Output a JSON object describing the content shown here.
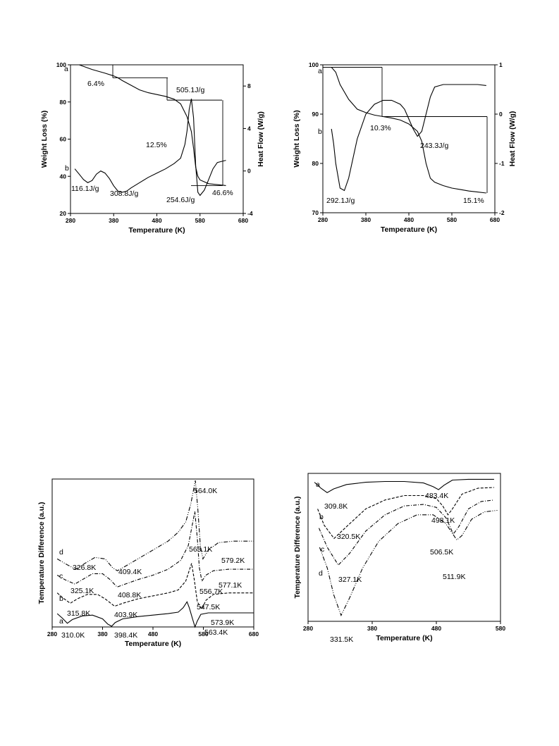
{
  "chart_data": [
    {
      "type": "line",
      "panel": "top-left",
      "xlabel": "Temperature (K)",
      "ylabel": "Weight Loss (%)",
      "y2label": "Heat Flow (W/g)",
      "xlim": [
        280,
        680
      ],
      "ylim": [
        20,
        100
      ],
      "y2lim": [
        -4,
        10
      ],
      "xticks": [
        "280",
        "380",
        "480",
        "580",
        "680"
      ],
      "yticks": [
        "20",
        "40",
        "60",
        "80",
        "100"
      ],
      "y2ticks": [
        "-4",
        "0",
        "4",
        "8"
      ],
      "series": [
        {
          "name": "a",
          "axis": "left",
          "x": [
            300,
            330,
            360,
            380,
            390,
            400,
            420,
            440,
            460,
            480,
            500,
            520,
            535,
            550,
            560,
            565,
            570,
            575,
            580,
            600,
            620,
            640
          ],
          "y": [
            100,
            97.5,
            95.5,
            94,
            93,
            91.5,
            89,
            86.5,
            85,
            84,
            83,
            81.5,
            79,
            72,
            64,
            55,
            45,
            40,
            38,
            36,
            35.5,
            35
          ]
        },
        {
          "name": "b",
          "axis": "right",
          "x": [
            290,
            300,
            310,
            320,
            330,
            340,
            350,
            360,
            370,
            380,
            390,
            400,
            410,
            420,
            440,
            460,
            480,
            500,
            520,
            535,
            545,
            550,
            555,
            560,
            565,
            570,
            575,
            580,
            590,
            600,
            610,
            620,
            630,
            640
          ],
          "y": [
            0.2,
            -0.3,
            -0.8,
            -1.1,
            -0.9,
            -0.3,
            0.0,
            -0.2,
            -0.7,
            -1.4,
            -1.9,
            -2.0,
            -1.9,
            -1.6,
            -1.1,
            -0.6,
            -0.2,
            0.2,
            0.7,
            1.2,
            2.5,
            3.8,
            5.8,
            6.8,
            5.0,
            0.5,
            -2.0,
            -2.3,
            -1.8,
            -0.8,
            0.2,
            0.8,
            0.9,
            1.0
          ]
        }
      ],
      "annotations": [
        {
          "text": "a",
          "x": 292,
          "y": 99
        },
        {
          "text": "b",
          "x": 292,
          "y": 41
        },
        {
          "text": "6.4%"
        },
        {
          "text": "12.5%"
        },
        {
          "text": "505.1J/g"
        },
        {
          "text": "116.1J/g"
        },
        {
          "text": "308.8J/g"
        },
        {
          "text": "254.6J/g"
        },
        {
          "text": "46.6%"
        }
      ]
    },
    {
      "type": "line",
      "panel": "top-right",
      "xlabel": "Temperature (K)",
      "ylabel": "Weight Loss (%)",
      "y2label": "Heat Flow (W/g)",
      "xlim": [
        280,
        680
      ],
      "ylim": [
        70,
        100
      ],
      "y2lim": [
        -2,
        1
      ],
      "xticks": [
        "280",
        "380",
        "480",
        "580",
        "680"
      ],
      "yticks": [
        "70",
        "80",
        "90",
        "100"
      ],
      "y2ticks": [
        "-2",
        "-1",
        "0",
        "1"
      ],
      "series": [
        {
          "name": "a",
          "axis": "left",
          "x": [
            300,
            310,
            320,
            340,
            360,
            380,
            400,
            420,
            440,
            460,
            480,
            500,
            510,
            520,
            530,
            540,
            560,
            580,
            600,
            620,
            640,
            660
          ],
          "y": [
            99.5,
            98.5,
            96,
            93,
            91,
            90.3,
            89.8,
            89.5,
            89.2,
            88.8,
            88,
            86.5,
            84.5,
            80,
            77,
            76.2,
            75.5,
            75,
            74.7,
            74.4,
            74.2,
            74
          ]
        },
        {
          "name": "b",
          "axis": "right",
          "x": [
            300,
            305,
            310,
            320,
            330,
            340,
            350,
            360,
            380,
            400,
            420,
            440,
            460,
            470,
            480,
            490,
            500,
            510,
            520,
            530,
            540,
            560,
            580,
            600,
            620,
            640,
            660
          ],
          "y": [
            -0.3,
            -0.6,
            -1.0,
            -1.5,
            -1.55,
            -1.3,
            -0.9,
            -0.5,
            0.0,
            0.2,
            0.28,
            0.28,
            0.2,
            0.1,
            -0.1,
            -0.3,
            -0.45,
            -0.35,
            0.0,
            0.35,
            0.55,
            0.6,
            0.6,
            0.6,
            0.6,
            0.6,
            0.58
          ]
        }
      ],
      "annotations": [
        {
          "text": "a",
          "x": 292,
          "y": 99
        },
        {
          "text": "b",
          "x": 292,
          "y": 81
        },
        {
          "text": "10.3%"
        },
        {
          "text": "243.3J/g"
        },
        {
          "text": "292.1J/g"
        },
        {
          "text": "15.1%"
        }
      ]
    },
    {
      "type": "line",
      "panel": "bottom-left",
      "xlabel": "Temperature (K)",
      "ylabel": "Temperature Difference (a.u.)",
      "xlim": [
        280,
        680
      ],
      "ylim": [
        0,
        10
      ],
      "xticks": [
        "280",
        "380",
        "480",
        "580",
        "680"
      ],
      "series": [
        {
          "name": "a",
          "x": [
            290,
            300,
            310,
            320,
            340,
            360,
            380,
            390,
            398,
            405,
            420,
            450,
            480,
            510,
            530,
            540,
            547.5,
            552,
            558,
            563.4,
            568,
            575,
            590,
            620,
            650,
            680
          ],
          "y": [
            0.9,
            0.6,
            0.25,
            0.5,
            0.75,
            0.8,
            0.55,
            0.2,
            0.05,
            0.3,
            0.55,
            0.7,
            0.8,
            0.9,
            1.0,
            1.3,
            1.7,
            1.3,
            0.6,
            0.0,
            0.4,
            0.85,
            0.95,
            0.95,
            0.95,
            0.95
          ]
        },
        {
          "name": "b",
          "x": [
            290,
            300,
            315.8,
            330,
            350,
            370,
            385,
            403.9,
            420,
            450,
            480,
            510,
            530,
            545,
            556.7,
            562,
            568,
            577.1,
            585,
            600,
            630,
            680
          ],
          "y": [
            2.3,
            2.0,
            1.6,
            1.9,
            2.2,
            2.2,
            1.9,
            1.4,
            1.6,
            1.9,
            2.1,
            2.3,
            2.5,
            3.1,
            4.3,
            3.2,
            1.7,
            1.2,
            1.8,
            2.2,
            2.3,
            2.3
          ]
        },
        {
          "name": "c",
          "x": [
            290,
            305,
            325.1,
            340,
            360,
            380,
            395,
            408.8,
            425,
            450,
            480,
            510,
            535,
            550,
            563.1,
            568,
            572,
            577.1,
            585,
            600,
            630,
            680
          ],
          "y": [
            3.5,
            3.2,
            2.9,
            3.2,
            3.6,
            3.6,
            3.2,
            2.7,
            2.9,
            3.2,
            3.5,
            3.9,
            4.5,
            5.5,
            7.8,
            6.0,
            4.0,
            3.1,
            3.5,
            3.8,
            3.9,
            3.9
          ]
        },
        {
          "name": "d",
          "x": [
            290,
            310,
            326.8,
            345,
            365,
            385,
            400,
            409.4,
            425,
            450,
            480,
            510,
            530,
            545,
            555,
            564,
            569,
            574,
            579.2,
            590,
            610,
            640,
            680
          ],
          "y": [
            4.6,
            4.2,
            3.9,
            4.3,
            4.7,
            4.6,
            4.0,
            3.8,
            4.1,
            4.6,
            5.2,
            5.8,
            6.4,
            7.1,
            8.3,
            9.9,
            8.0,
            5.5,
            4.6,
            5.2,
            5.7,
            5.8,
            5.8
          ]
        }
      ],
      "annotations": [
        {
          "text": "a"
        },
        {
          "text": "b"
        },
        {
          "text": "c"
        },
        {
          "text": "d"
        },
        {
          "text": "310.0K"
        },
        {
          "text": "398.4K"
        },
        {
          "text": "547.5K"
        },
        {
          "text": "563.4K"
        },
        {
          "text": "573.9K"
        },
        {
          "text": "315.8K"
        },
        {
          "text": "403.9K"
        },
        {
          "text": "556.7K"
        },
        {
          "text": "577.1K"
        },
        {
          "text": "325.1K"
        },
        {
          "text": "408.8K"
        },
        {
          "text": "563.1K"
        },
        {
          "text": "326.8K"
        },
        {
          "text": "409.4K"
        },
        {
          "text": "564.0K"
        },
        {
          "text": "579.2K"
        }
      ]
    },
    {
      "type": "line",
      "panel": "bottom-right",
      "xlabel": "Temperature (K)",
      "ylabel": "Temperature Difference (a.u.)",
      "xlim": [
        280,
        580
      ],
      "ylim": [
        0,
        10
      ],
      "xticks": [
        "280",
        "380",
        "480",
        "580"
      ],
      "series": [
        {
          "name": "a",
          "x": [
            290,
            300,
            309.8,
            320,
            340,
            370,
            400,
            430,
            460,
            475,
            483.4,
            492,
            505,
            530,
            560,
            570
          ],
          "y": [
            9.4,
            9.0,
            8.7,
            8.95,
            9.25,
            9.4,
            9.45,
            9.45,
            9.35,
            9.1,
            8.9,
            9.2,
            9.55,
            9.6,
            9.6,
            9.6
          ]
        },
        {
          "name": "b",
          "x": [
            295,
            305,
            320.5,
            340,
            370,
            400,
            430,
            460,
            480,
            490,
            498.1,
            505,
            520,
            545,
            570
          ],
          "y": [
            7.6,
            6.5,
            5.6,
            6.4,
            7.6,
            8.2,
            8.5,
            8.5,
            8.3,
            7.8,
            7.2,
            7.6,
            8.6,
            9.0,
            9.05
          ]
        },
        {
          "name": "c",
          "x": [
            297,
            310,
            327.1,
            345,
            370,
            400,
            430,
            460,
            480,
            495,
            506.5,
            515,
            530,
            550,
            570
          ],
          "y": [
            6.3,
            5.0,
            3.8,
            4.6,
            6.1,
            7.2,
            7.8,
            7.9,
            7.7,
            7.0,
            5.9,
            6.4,
            7.6,
            8.1,
            8.2
          ]
        },
        {
          "name": "d",
          "x": [
            298,
            310,
            320,
            331.5,
            345,
            365,
            390,
            420,
            450,
            475,
            495,
            511.9,
            520,
            535,
            555,
            575
          ],
          "y": [
            5.0,
            3.6,
            1.8,
            0.4,
            1.6,
            3.6,
            5.4,
            6.6,
            7.2,
            7.2,
            6.6,
            5.5,
            5.8,
            6.9,
            7.4,
            7.5
          ]
        }
      ],
      "annotations": [
        {
          "text": "a"
        },
        {
          "text": "b"
        },
        {
          "text": "c"
        },
        {
          "text": "d"
        },
        {
          "text": "309.8K"
        },
        {
          "text": "483.4K"
        },
        {
          "text": "320.5K"
        },
        {
          "text": "498.1K"
        },
        {
          "text": "327.1K"
        },
        {
          "text": "506.5K"
        },
        {
          "text": "331.5K"
        },
        {
          "text": "511.9K"
        }
      ]
    }
  ]
}
